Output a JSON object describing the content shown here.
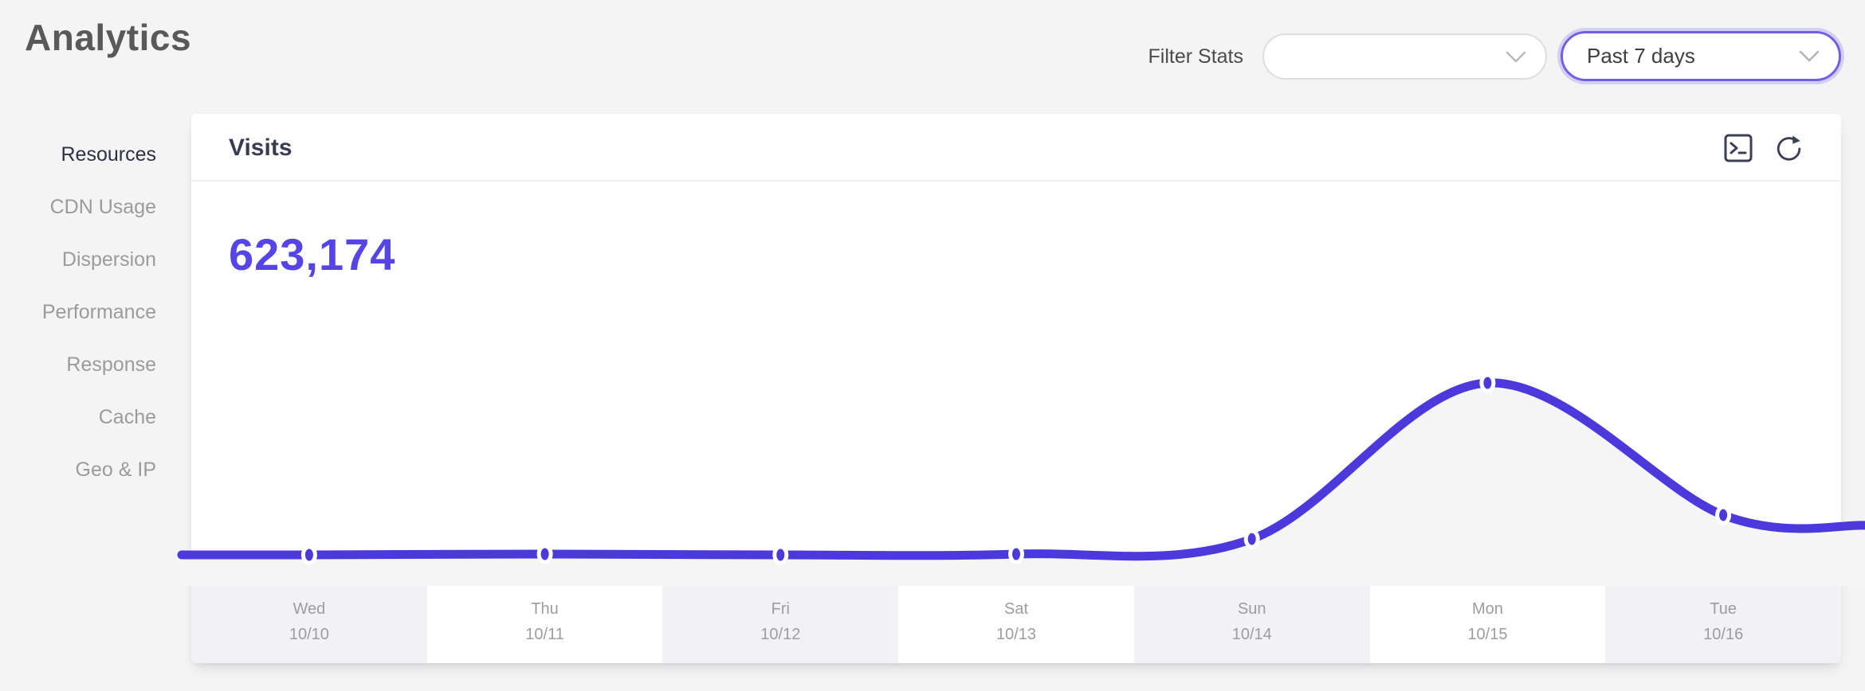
{
  "page": {
    "title": "Analytics"
  },
  "filter": {
    "label": "Filter Stats",
    "stats_value": "",
    "range_value": "Past 7 days"
  },
  "sidebar": {
    "items": [
      {
        "label": "Resources",
        "active": true
      },
      {
        "label": "CDN Usage",
        "active": false
      },
      {
        "label": "Dispersion",
        "active": false
      },
      {
        "label": "Performance",
        "active": false
      },
      {
        "label": "Response",
        "active": false
      },
      {
        "label": "Cache",
        "active": false
      },
      {
        "label": "Geo & IP",
        "active": false
      }
    ]
  },
  "visits_card": {
    "title": "Visits",
    "total": "623,174",
    "toolbar_icons": [
      "terminal-icon",
      "refresh-icon"
    ]
  },
  "chart_data": {
    "type": "area",
    "title": "Visits",
    "total_label": "623,174",
    "categories": [
      {
        "day": "Wed",
        "date": "10/10"
      },
      {
        "day": "Thu",
        "date": "10/11"
      },
      {
        "day": "Fri",
        "date": "10/12"
      },
      {
        "day": "Sat",
        "date": "10/13"
      },
      {
        "day": "Sun",
        "date": "10/14"
      },
      {
        "day": "Mon",
        "date": "10/15"
      },
      {
        "day": "Tue",
        "date": "10/16"
      }
    ],
    "series": [
      {
        "name": "Visits",
        "values_relative": [
          0.153,
          0.157,
          0.153,
          0.157,
          0.231,
          1.0,
          0.349
        ]
      }
    ],
    "edges_relative": {
      "left": 0.153,
      "right": 0.298
    },
    "ylim": [
      0,
      1
    ],
    "grid": false,
    "legend": false,
    "xlabel": "",
    "ylabel": "",
    "colors": {
      "line": "#4b39dc",
      "area": "#f5f5f6",
      "marker_fill": "#4b39dc",
      "marker_ring": "#ffffff",
      "accent_text": "#5544e6"
    }
  }
}
